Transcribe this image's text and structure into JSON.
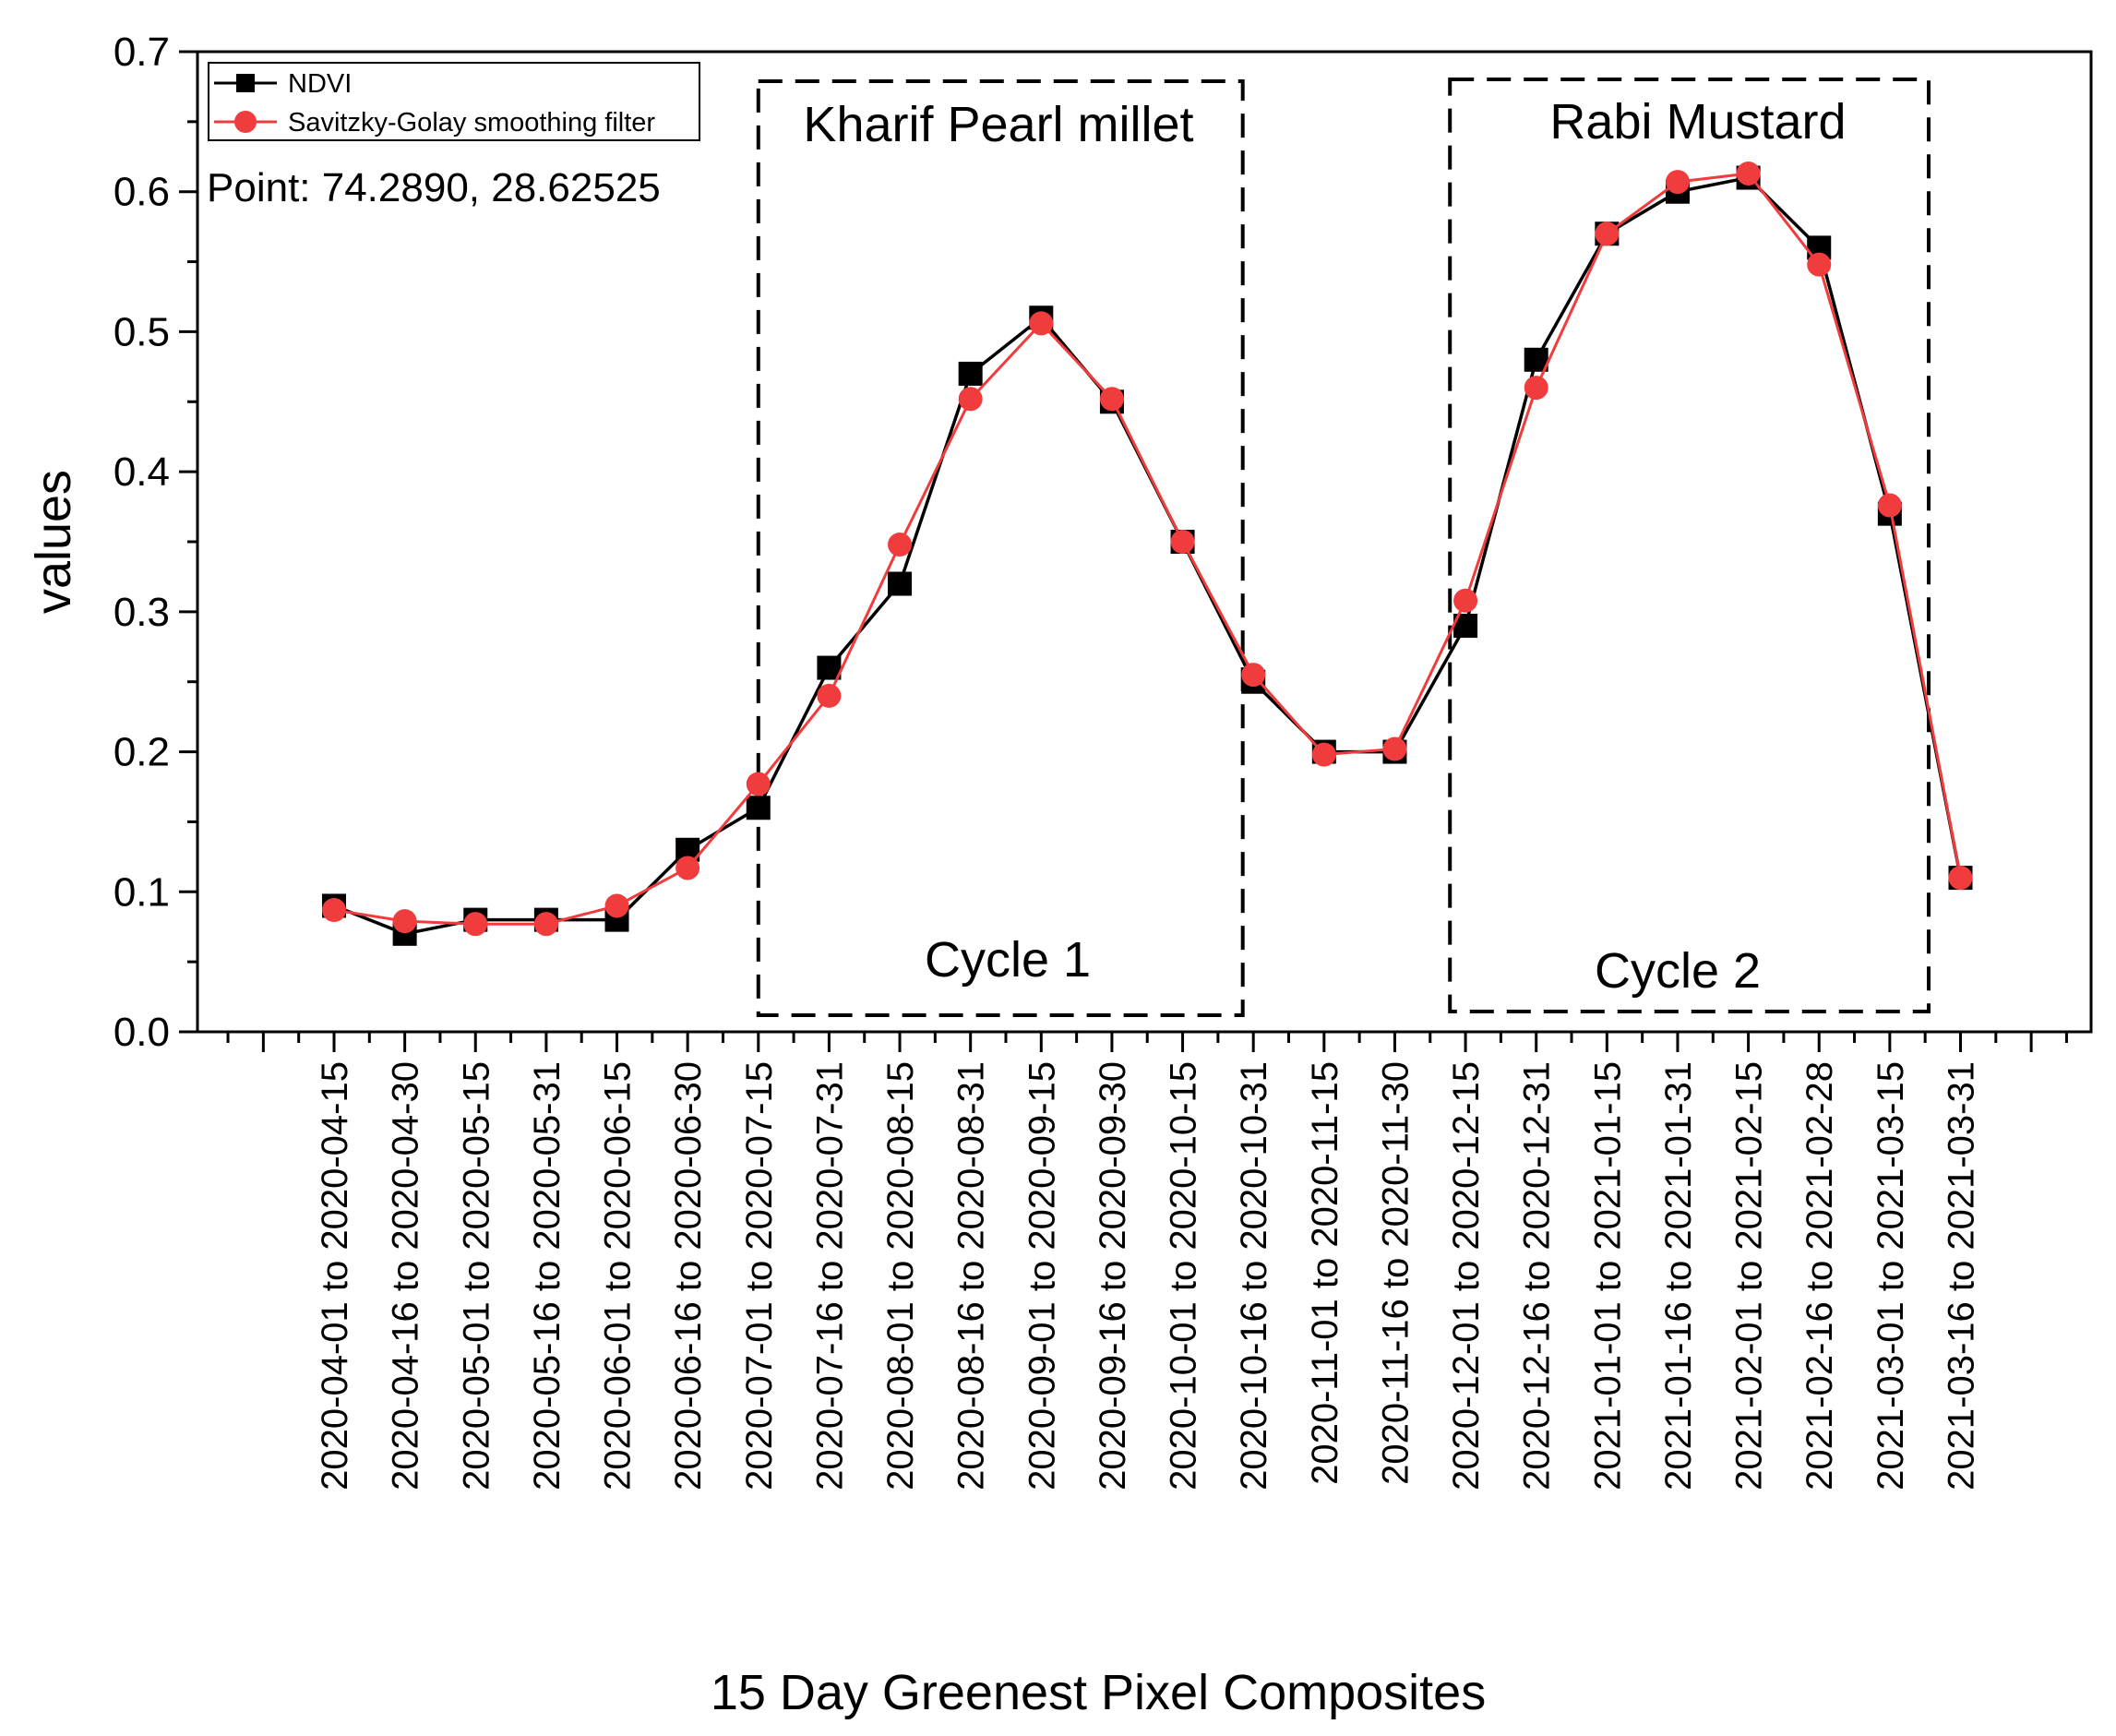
{
  "chart_data": {
    "type": "line",
    "title": "",
    "xlabel": "15 Day Greenest Pixel Composites",
    "ylabel": "values",
    "ylim": [
      0,
      0.7
    ],
    "yticks": [
      "0.0",
      "0.1",
      "0.2",
      "0.3",
      "0.4",
      "0.5",
      "0.6",
      "0.7"
    ],
    "categories": [
      "2020-04-01 to 2020-04-15",
      "2020-04-16 to 2020-04-30",
      "2020-05-01 to 2020-05-15",
      "2020-05-16 to 2020-05-31",
      "2020-06-01 to 2020-06-15",
      "2020-06-16 to 2020-06-30",
      "2020-07-01 to 2020-07-15",
      "2020-07-16 to 2020-07-31",
      "2020-08-01 to 2020-08-15",
      "2020-08-16 to 2020-08-31",
      "2020-09-01 to 2020-09-15",
      "2020-09-16 to 2020-09-30",
      "2020-10-01 to 2020-10-15",
      "2020-10-16 to 2020-10-31",
      "2020-11-01 to 2020-11-15",
      "2020-11-16 to 2020-11-30",
      "2020-12-01 to 2020-12-15",
      "2020-12-16 to 2020-12-31",
      "2021-01-01 to 2021-01-15",
      "2021-01-16 to 2021-01-31",
      "2021-02-01 to 2021-02-15",
      "2021-02-16 to 2021-02-28",
      "2021-03-01 to 2021-03-15",
      "2021-03-16 to 2021-03-31"
    ],
    "series": [
      {
        "name": "NDVI",
        "color": "#000000",
        "marker": "square",
        "values": [
          0.09,
          0.07,
          0.08,
          0.08,
          0.08,
          0.13,
          0.16,
          0.26,
          0.32,
          0.47,
          0.51,
          0.45,
          0.35,
          0.25,
          0.2,
          0.2,
          0.29,
          0.48,
          0.57,
          0.6,
          0.61,
          0.56,
          0.37,
          0.11
        ]
      },
      {
        "name": "Savitzky-Golay smoothing filter",
        "color": "#f03c3c",
        "marker": "circle",
        "values": [
          0.087,
          0.079,
          0.077,
          0.077,
          0.09,
          0.117,
          0.177,
          0.24,
          0.348,
          0.452,
          0.506,
          0.452,
          0.35,
          0.255,
          0.198,
          0.202,
          0.308,
          0.46,
          0.57,
          0.607,
          0.613,
          0.548,
          0.376,
          0.11
        ]
      }
    ],
    "annotations": {
      "point": "Point: 74.2890, 28.62525",
      "boxes": [
        {
          "top_label": "Kharif Pearl millet",
          "bottom_label": "Cycle 1"
        },
        {
          "top_label": "Rabi Mustard",
          "bottom_label": "Cycle 2"
        }
      ]
    }
  }
}
